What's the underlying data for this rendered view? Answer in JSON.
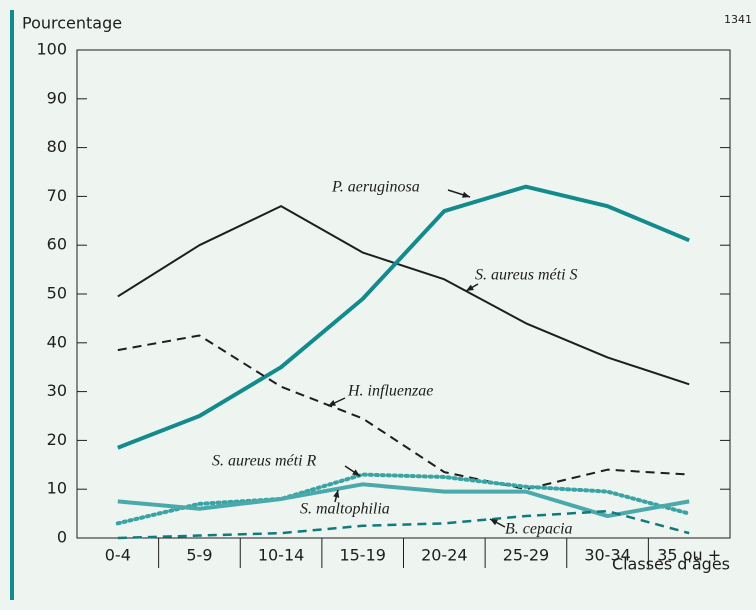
{
  "chart_data": {
    "type": "line",
    "y_label": "Pourcentage",
    "x_label": "Classes d'âges",
    "annotation": "1341",
    "categories": [
      "0-4",
      "5-9",
      "10-14",
      "15-19",
      "20-24",
      "25-29",
      "30-34",
      "35 ou +"
    ],
    "ylim": [
      0,
      100
    ],
    "yticks": [
      0,
      10,
      20,
      30,
      40,
      50,
      60,
      70,
      80,
      90,
      100
    ],
    "series": [
      {
        "name": "S. aureus méti S",
        "color": "#1e1e1e",
        "values": [
          49.5,
          60,
          68,
          58.5,
          53,
          44,
          37,
          31.5
        ]
      },
      {
        "name": "P. aeruginosa",
        "color": "#138a8c",
        "values": [
          18.5,
          25,
          35,
          49,
          67,
          72,
          68,
          61
        ]
      },
      {
        "name": "H. influenzae",
        "color": "#1e1e1e",
        "values": [
          38.5,
          41.5,
          31,
          24.5,
          13.5,
          10,
          14,
          13
        ]
      },
      {
        "name": "S. aureus méti R",
        "color": "#3aa3a3",
        "values": [
          3,
          7,
          8,
          13,
          12.5,
          10.5,
          9.5,
          5
        ]
      },
      {
        "name": "S. maltophilia",
        "color": "#4aa9ab",
        "values": [
          7.5,
          6,
          8,
          11,
          9.5,
          9.5,
          4.5,
          7.5
        ]
      },
      {
        "name": "B. cepacia",
        "color": "#137a7c",
        "values": [
          0,
          0.5,
          1,
          2.5,
          3,
          4.5,
          5.5,
          1
        ]
      }
    ]
  }
}
